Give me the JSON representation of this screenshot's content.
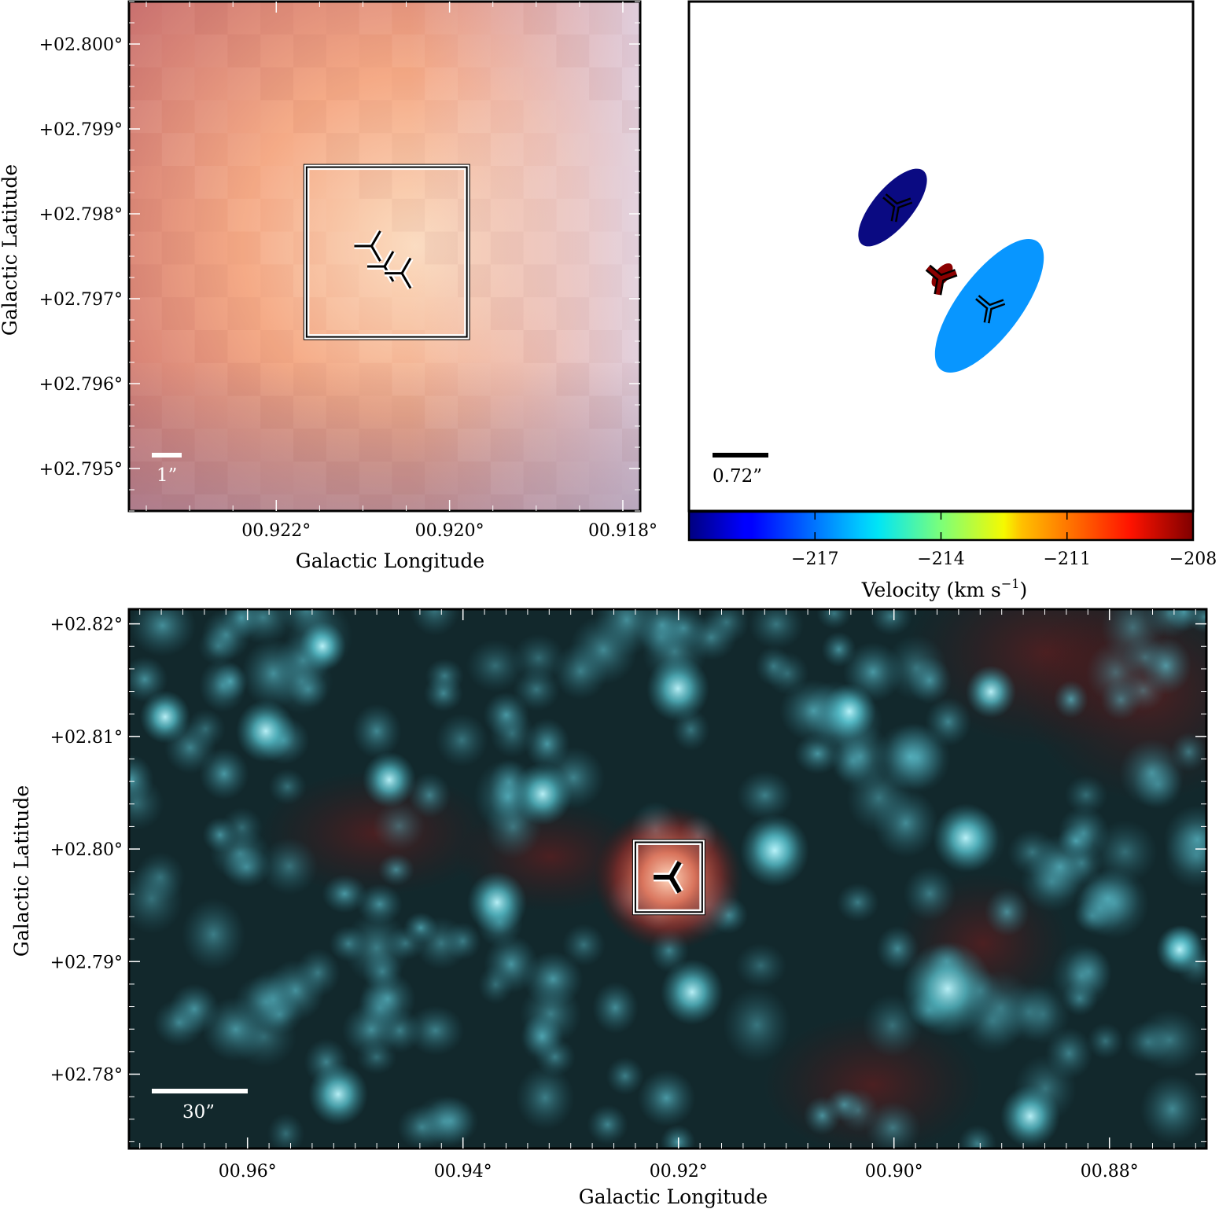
{
  "chart_data": [
    {
      "type": "heatmap",
      "panel": "top-left",
      "xlabel": "Galactic Longitude",
      "ylabel": "Galactic Latitude",
      "xlim": [
        0.9237,
        0.9178
      ],
      "ylim": [
        2.7945,
        2.8005
      ],
      "x_ticks": [
        0.922,
        0.92,
        0.918
      ],
      "x_tick_labels": [
        "00.922°",
        "00.920°",
        "00.918°"
      ],
      "y_ticks": [
        2.8,
        2.799,
        2.798,
        2.797,
        2.796,
        2.795
      ],
      "y_tick_labels": [
        "+02.800°",
        "+02.799°",
        "+02.798°",
        "+02.797°",
        "+02.796°",
        "+02.795°"
      ],
      "scalebar_label": "1”",
      "markers": [
        {
          "l": 0.9209,
          "b": 2.79762
        },
        {
          "l": 0.92075,
          "b": 2.79738
        },
        {
          "l": 0.92055,
          "b": 2.7973
        }
      ],
      "box": {
        "l_min": 0.9198,
        "l_max": 0.92165,
        "b_min": 2.79655,
        "b_max": 2.79855
      }
    },
    {
      "type": "scatter",
      "panel": "top-right",
      "scalebar_label": "0.72”",
      "colorbar": {
        "label": "Velocity (km s",
        "label_sup": "−1",
        "label_close": ")",
        "range": [
          -220,
          -208
        ],
        "ticks": [
          -217,
          -214,
          -211,
          -208
        ],
        "tick_labels": [
          "−217",
          "−214",
          "−211",
          "−208"
        ]
      },
      "components": [
        {
          "velocity": -219.5,
          "color": "#0a0a82"
        },
        {
          "velocity": -208.4,
          "color": "#8b0000"
        },
        {
          "velocity": -216.8,
          "color": "#0896ff"
        }
      ]
    },
    {
      "type": "heatmap",
      "panel": "bottom",
      "xlabel": "Galactic Longitude",
      "ylabel": "Galactic Latitude",
      "xlim": [
        0.971,
        0.871
      ],
      "ylim": [
        2.7734,
        2.8213
      ],
      "x_ticks": [
        0.96,
        0.94,
        0.92,
        0.9,
        0.88
      ],
      "x_tick_labels": [
        "00.96°",
        "00.94°",
        "00.92°",
        "00.90°",
        "00.88°"
      ],
      "y_ticks": [
        2.82,
        2.81,
        2.8,
        2.79,
        2.78
      ],
      "y_tick_labels": [
        "+02.82°",
        "+02.81°",
        "+02.80°",
        "+02.79°",
        "+02.78°"
      ],
      "scalebar_label": "30”",
      "markers": [
        {
          "l": 0.9207,
          "b": 2.7975
        }
      ],
      "box": {
        "l_min": 0.9178,
        "l_max": 0.924,
        "b_min": 2.7944,
        "b_max": 2.8006
      }
    }
  ]
}
